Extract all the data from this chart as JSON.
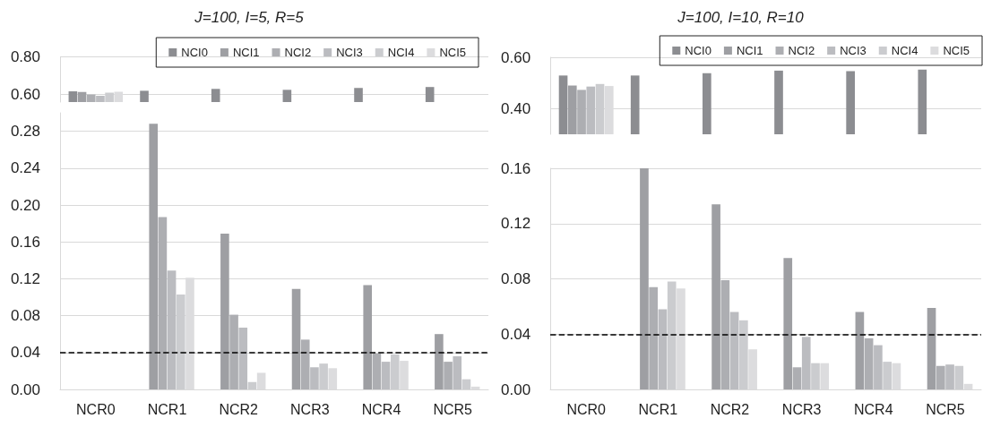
{
  "chart_data": [
    {
      "type": "bar",
      "title": "J=100, I=5, R=5",
      "categories": [
        null,
        null,
        null,
        null,
        null,
        null
      ],
      "tick_labels": "y",
      "legend": "top right",
      "grid": "y",
      "ylim": [
        0.56,
        0.8
      ],
      "yticks": [
        {
          "value": 0.6,
          "label": "0.60"
        },
        {
          "value": 0.8,
          "label": "0.80"
        }
      ],
      "series": [
        {
          "name": "NCI0",
          "color": "#8c8d91",
          "values": [
            0.617,
            0.62,
            0.63,
            0.625,
            0.635,
            0.64
          ]
        },
        {
          "name": "NCI1",
          "color": "#9e9fa3",
          "values": [
            0.614,
            null,
            null,
            null,
            null,
            null
          ]
        },
        {
          "name": "NCI2",
          "color": "#adaeb2",
          "values": [
            0.6,
            null,
            null,
            null,
            null,
            null
          ]
        },
        {
          "name": "NCI3",
          "color": "#bbbcc0",
          "values": [
            0.593,
            null,
            null,
            null,
            null,
            null
          ]
        },
        {
          "name": "NCI4",
          "color": "#cbcccf",
          "values": [
            0.61,
            null,
            null,
            null,
            null,
            null
          ]
        },
        {
          "name": "NCI5",
          "color": "#dcdcde",
          "values": [
            0.615,
            null,
            null,
            null,
            null,
            null
          ]
        }
      ]
    },
    {
      "type": "bar",
      "title": "J=100, I=10, R=10",
      "categories": [
        null,
        null,
        null,
        null,
        null,
        null
      ],
      "tick_labels": "y",
      "legend": "top right",
      "grid": "y",
      "ylim": [
        0.3,
        0.6
      ],
      "yticks": [
        {
          "value": 0.4,
          "label": "0.40"
        },
        {
          "value": 0.6,
          "label": "0.60"
        }
      ],
      "series": [
        {
          "name": "NCI0",
          "color": "#8c8d91",
          "values": [
            0.529,
            0.529,
            0.538,
            0.548,
            0.546,
            0.552
          ]
        },
        {
          "name": "NCI1",
          "color": "#9e9fa3",
          "values": [
            0.49,
            null,
            null,
            null,
            null,
            null
          ]
        },
        {
          "name": "NCI2",
          "color": "#adaeb2",
          "values": [
            0.473,
            null,
            null,
            null,
            null,
            null
          ]
        },
        {
          "name": "NCI3",
          "color": "#bbbcc0",
          "values": [
            0.486,
            null,
            null,
            null,
            null,
            null
          ]
        },
        {
          "name": "NCI4",
          "color": "#cbcccf",
          "values": [
            0.496,
            null,
            null,
            null,
            null,
            null
          ]
        },
        {
          "name": "NCI5",
          "color": "#dcdcde",
          "values": [
            0.488,
            null,
            null,
            null,
            null,
            null
          ]
        }
      ]
    },
    {
      "type": "bar",
      "categories": [
        "NCR0",
        "NCR1",
        "NCR2",
        "NCR3",
        "NCR4",
        "NCR5"
      ],
      "grid": "y",
      "ylim": [
        0,
        0.3
      ],
      "yticks": [
        {
          "value": 0,
          "label": "0.00"
        },
        {
          "value": 0.04,
          "label": "0.04"
        },
        {
          "value": 0.08,
          "label": "0.08"
        },
        {
          "value": 0.12,
          "label": "0.12"
        },
        {
          "value": 0.16,
          "label": "0.16"
        },
        {
          "value": 0.2,
          "label": "0.20"
        },
        {
          "value": 0.24,
          "label": "0.24"
        },
        {
          "value": 0.28,
          "label": "0.28"
        }
      ],
      "ref_lines": [
        {
          "axis": "y",
          "value": 0.04,
          "color": "#000000",
          "line_style": "dashed"
        }
      ],
      "series": [
        {
          "color": "#8c8d91",
          "values": [
            null,
            null,
            null,
            null,
            null,
            null
          ]
        },
        {
          "color": "#9e9fa3",
          "values": [
            null,
            0.288,
            0.169,
            0.109,
            0.113,
            0.06
          ]
        },
        {
          "color": "#adaeb2",
          "values": [
            null,
            0.187,
            0.081,
            0.054,
            0.039,
            0.03
          ]
        },
        {
          "color": "#bbbcc0",
          "values": [
            null,
            0.129,
            0.067,
            0.024,
            0.03,
            0.036
          ]
        },
        {
          "color": "#cbcccf",
          "values": [
            null,
            0.103,
            0.008,
            0.028,
            0.038,
            0.011
          ]
        },
        {
          "color": "#dcdcde",
          "values": [
            null,
            0.121,
            0.018,
            0.023,
            0.031,
            0.003
          ]
        }
      ]
    },
    {
      "type": "bar",
      "categories": [
        "NCR0",
        "NCR1",
        "NCR2",
        "NCR3",
        "NCR4",
        "NCR5"
      ],
      "grid": "y",
      "ylim": [
        0,
        0.16
      ],
      "yticks": [
        {
          "value": 0,
          "label": "0.00"
        },
        {
          "value": 0.04,
          "label": "0.04"
        },
        {
          "value": 0.08,
          "label": "0.08"
        },
        {
          "value": 0.12,
          "label": "0.12"
        },
        {
          "value": 0.16,
          "label": "0.16"
        }
      ],
      "ref_lines": [
        {
          "axis": "y",
          "value": 0.04,
          "color": "#000000",
          "line_style": "dashed"
        }
      ],
      "series": [
        {
          "color": "#8c8d91",
          "values": [
            null,
            null,
            null,
            null,
            null,
            null
          ]
        },
        {
          "color": "#9e9fa3",
          "values": [
            null,
            0.16,
            0.134,
            0.095,
            0.056,
            0.059
          ]
        },
        {
          "color": "#adaeb2",
          "values": [
            null,
            0.074,
            0.079,
            0.016,
            0.037,
            0.017
          ]
        },
        {
          "color": "#bbbcc0",
          "values": [
            null,
            0.058,
            0.056,
            0.038,
            0.032,
            0.018
          ]
        },
        {
          "color": "#cbcccf",
          "values": [
            null,
            0.078,
            0.05,
            0.019,
            0.02,
            0.017
          ]
        },
        {
          "color": "#dcdcde",
          "values": [
            null,
            0.073,
            0.029,
            0.019,
            0.019,
            0.004
          ]
        }
      ]
    }
  ]
}
